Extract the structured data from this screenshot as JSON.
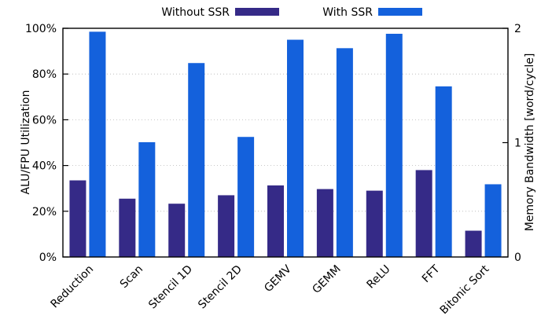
{
  "chart_data": {
    "type": "bar",
    "categories": [
      "Reduction",
      "Scan",
      "Stencil 1D",
      "Stencil 2D",
      "GEMV",
      "GEMM",
      "ReLU",
      "FFT",
      "Bitonic Sort"
    ],
    "series": [
      {
        "name": "Without SSR",
        "color": "#352a87",
        "values": [
          33.5,
          25.5,
          23.3,
          27.0,
          31.3,
          29.7,
          29.0,
          38.0,
          11.5
        ]
      },
      {
        "name": "With SSR",
        "color": "#1461dc",
        "values": [
          98.5,
          50.2,
          84.8,
          52.5,
          95.0,
          91.3,
          97.6,
          74.6,
          31.8
        ]
      }
    ],
    "ylabel": "ALU/FPU Utilization",
    "y2label": "Memory Bandwidth [word/cycle]",
    "ylim": [
      0,
      100
    ],
    "y2lim": [
      0,
      2
    ],
    "y_ticks": [
      "0%",
      "20%",
      "40%",
      "60%",
      "80%",
      "100%"
    ],
    "y2_ticks": [
      "0",
      "1",
      "2"
    ],
    "grid": true,
    "legend_position": "top"
  }
}
